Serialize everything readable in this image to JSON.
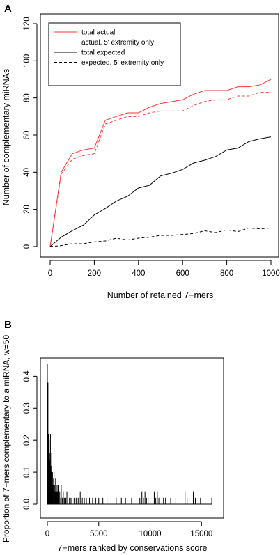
{
  "panels": {
    "a_label": "A",
    "b_label": "B"
  },
  "chart_data": [
    {
      "type": "line",
      "xlabel": "Number of retained 7−mers",
      "ylabel": "Number of complementary miRNAs",
      "xlim": [
        0,
        1000
      ],
      "ylim": [
        0,
        120
      ],
      "x_ticks": [
        "0",
        "200",
        "400",
        "600",
        "800",
        "1000"
      ],
      "y_ticks": [
        "0",
        "20",
        "40",
        "60",
        "80",
        "100",
        "120"
      ],
      "legend_position": "top-left",
      "x": [
        0,
        50,
        100,
        150,
        200,
        250,
        300,
        350,
        400,
        450,
        500,
        550,
        600,
        650,
        700,
        750,
        800,
        850,
        900,
        950,
        1000
      ],
      "series": [
        {
          "name": "total actual",
          "color": "#ff3333",
          "dash": "solid",
          "values": [
            0,
            40,
            50,
            52,
            53,
            68,
            70,
            72,
            72,
            75,
            77,
            78,
            79,
            82,
            84,
            84,
            84,
            86,
            86,
            87,
            90
          ]
        },
        {
          "name": "actual, 5' extremity only",
          "color": "#ff3333",
          "dash": "dashed",
          "values": [
            0,
            39,
            47,
            49,
            50,
            66,
            68,
            70,
            70,
            72,
            73,
            73,
            73,
            76,
            78,
            79,
            79,
            81,
            81,
            83,
            83
          ]
        },
        {
          "name": "total expected",
          "color": "#000000",
          "dash": "solid",
          "values": [
            0,
            5,
            8.5,
            11.5,
            17,
            20.5,
            24.5,
            27,
            31.5,
            33,
            38,
            39.5,
            41.5,
            45,
            46.5,
            48.5,
            52,
            53,
            56.5,
            58,
            59
          ]
        },
        {
          "name": "expected, 5' extremity only",
          "color": "#000000",
          "dash": "dashed",
          "values": [
            0,
            0.5,
            1.5,
            1.5,
            2.5,
            3,
            4.5,
            3.5,
            4.5,
            5,
            6,
            6,
            6.5,
            7,
            8.5,
            7.5,
            9,
            8,
            10,
            9.5,
            10
          ]
        }
      ]
    },
    {
      "type": "line",
      "xlabel": "7−mers ranked by conservations score",
      "ylabel": "Proportion of 7−mers complementary to a miRNA, w=50",
      "xlim": [
        0,
        16200
      ],
      "ylim": [
        0,
        0.44
      ],
      "x_ticks": [
        "0",
        "5000",
        "10000",
        "15000"
      ],
      "y_ticks": [
        "0.0",
        "0.1",
        "0.2",
        "0.3",
        "0.4"
      ],
      "peaks": [
        {
          "x": 0,
          "y": 0.44
        },
        {
          "x": 30,
          "y": 0.3
        },
        {
          "x": 60,
          "y": 0.38
        },
        {
          "x": 100,
          "y": 0.22
        },
        {
          "x": 140,
          "y": 0.18
        },
        {
          "x": 180,
          "y": 0.2
        },
        {
          "x": 220,
          "y": 0.16
        },
        {
          "x": 260,
          "y": 0.14
        },
        {
          "x": 300,
          "y": 0.22
        },
        {
          "x": 340,
          "y": 0.12
        },
        {
          "x": 380,
          "y": 0.1
        },
        {
          "x": 420,
          "y": 0.16
        },
        {
          "x": 460,
          "y": 0.08
        },
        {
          "x": 500,
          "y": 0.1
        },
        {
          "x": 540,
          "y": 0.06
        },
        {
          "x": 600,
          "y": 0.08
        },
        {
          "x": 650,
          "y": 0.1
        },
        {
          "x": 700,
          "y": 0.06
        },
        {
          "x": 750,
          "y": 0.04
        },
        {
          "x": 800,
          "y": 0.08
        },
        {
          "x": 850,
          "y": 0.06
        },
        {
          "x": 900,
          "y": 0.04
        },
        {
          "x": 950,
          "y": 0.06
        },
        {
          "x": 1000,
          "y": 0.04
        },
        {
          "x": 1050,
          "y": 0.06
        },
        {
          "x": 1100,
          "y": 0.02
        },
        {
          "x": 1200,
          "y": 0.04
        },
        {
          "x": 1300,
          "y": 0.02
        },
        {
          "x": 1350,
          "y": 0.06
        },
        {
          "x": 1450,
          "y": 0.02
        },
        {
          "x": 1550,
          "y": 0.04
        },
        {
          "x": 1650,
          "y": 0.02
        },
        {
          "x": 1800,
          "y": 0.02
        },
        {
          "x": 1900,
          "y": 0.04
        },
        {
          "x": 2000,
          "y": 0.02
        },
        {
          "x": 2150,
          "y": 0.02
        },
        {
          "x": 2300,
          "y": 0.02
        },
        {
          "x": 2400,
          "y": 0.02
        },
        {
          "x": 2600,
          "y": 0.02
        },
        {
          "x": 2800,
          "y": 0.02
        },
        {
          "x": 3000,
          "y": 0.02
        },
        {
          "x": 3200,
          "y": 0.04
        },
        {
          "x": 3400,
          "y": 0.02
        },
        {
          "x": 3600,
          "y": 0.02
        },
        {
          "x": 3800,
          "y": 0.02
        },
        {
          "x": 4100,
          "y": 0.02
        },
        {
          "x": 4400,
          "y": 0.02
        },
        {
          "x": 4700,
          "y": 0.02
        },
        {
          "x": 5000,
          "y": 0.02
        },
        {
          "x": 5400,
          "y": 0.02
        },
        {
          "x": 5800,
          "y": 0.02
        },
        {
          "x": 6200,
          "y": 0.02
        },
        {
          "x": 6700,
          "y": 0.02
        },
        {
          "x": 7200,
          "y": 0.02
        },
        {
          "x": 7600,
          "y": 0.02
        },
        {
          "x": 8200,
          "y": 0.02
        },
        {
          "x": 9000,
          "y": 0.02
        },
        {
          "x": 9200,
          "y": 0.04
        },
        {
          "x": 9350,
          "y": 0.02
        },
        {
          "x": 9500,
          "y": 0.04
        },
        {
          "x": 9650,
          "y": 0.02
        },
        {
          "x": 9800,
          "y": 0.02
        },
        {
          "x": 10000,
          "y": 0.02
        },
        {
          "x": 10400,
          "y": 0.04
        },
        {
          "x": 10550,
          "y": 0.02
        },
        {
          "x": 10700,
          "y": 0.04
        },
        {
          "x": 10850,
          "y": 0.02
        },
        {
          "x": 11300,
          "y": 0.02
        },
        {
          "x": 11500,
          "y": 0.02
        },
        {
          "x": 12000,
          "y": 0.02
        },
        {
          "x": 12500,
          "y": 0.02
        },
        {
          "x": 13400,
          "y": 0.04
        },
        {
          "x": 13600,
          "y": 0.02
        },
        {
          "x": 14200,
          "y": 0.04
        },
        {
          "x": 14400,
          "y": 0.02
        },
        {
          "x": 14900,
          "y": 0.02
        },
        {
          "x": 16000,
          "y": 0.02
        }
      ]
    }
  ]
}
